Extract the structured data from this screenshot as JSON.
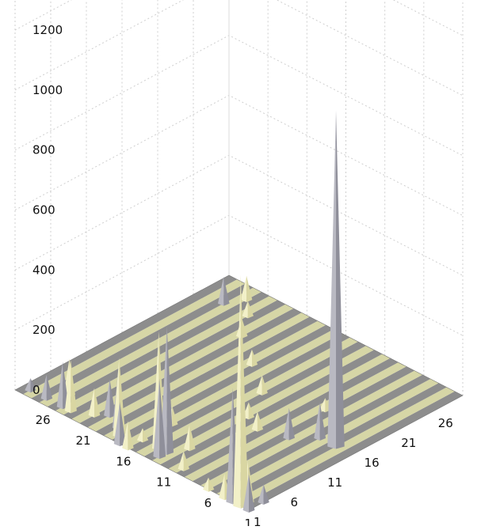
{
  "chart_data": {
    "type": "3d-bar",
    "x_ticks": [
      "1",
      "6",
      "11",
      "16",
      "21",
      "26"
    ],
    "y_ticks": [
      "1",
      "6",
      "11",
      "16",
      "21",
      "26"
    ],
    "z_ticks": [
      "0",
      "200",
      "400",
      "600",
      "800",
      "1000",
      "1200"
    ],
    "zlim": [
      0,
      1200
    ],
    "grid": true,
    "colors": {
      "row_a": "#f2f0c8",
      "row_b": "#b9b9c2",
      "floor_light": "#d6d6a6",
      "floor_dark": "#8d8d8d"
    },
    "peaks": [
      {
        "x": 1,
        "y": 1,
        "z": 120
      },
      {
        "x": 2,
        "y": 1,
        "z": 770
      },
      {
        "x": 3,
        "y": 1,
        "z": 380
      },
      {
        "x": 4,
        "y": 1,
        "z": 80
      },
      {
        "x": 2,
        "y": 2,
        "z": 140
      },
      {
        "x": 1,
        "y": 3,
        "z": 60
      },
      {
        "x": 6,
        "y": 1,
        "z": 40
      },
      {
        "x": 10,
        "y": 2,
        "z": 60
      },
      {
        "x": 13,
        "y": 3,
        "z": 420
      },
      {
        "x": 13,
        "y": 2,
        "z": 260
      },
      {
        "x": 14,
        "y": 3,
        "z": 390
      },
      {
        "x": 12,
        "y": 5,
        "z": 80
      },
      {
        "x": 16,
        "y": 1,
        "z": 90
      },
      {
        "x": 16,
        "y": 3,
        "z": 40
      },
      {
        "x": 17,
        "y": 1,
        "z": 140
      },
      {
        "x": 18,
        "y": 2,
        "z": 260
      },
      {
        "x": 19,
        "y": 3,
        "z": 200
      },
      {
        "x": 21,
        "y": 4,
        "z": 120
      },
      {
        "x": 22,
        "y": 3,
        "z": 90
      },
      {
        "x": 16,
        "y": 7,
        "z": 60
      },
      {
        "x": 24,
        "y": 2,
        "z": 170
      },
      {
        "x": 25,
        "y": 2,
        "z": 150
      },
      {
        "x": 26,
        "y": 4,
        "z": 120
      },
      {
        "x": 27,
        "y": 2,
        "z": 80
      },
      {
        "x": 29,
        "y": 2,
        "z": 40
      },
      {
        "x": 3,
        "y": 15,
        "z": 1120
      },
      {
        "x": 5,
        "y": 15,
        "z": 120
      },
      {
        "x": 7,
        "y": 13,
        "z": 100
      },
      {
        "x": 10,
        "y": 12,
        "z": 60
      },
      {
        "x": 12,
        "y": 13,
        "z": 50
      },
      {
        "x": 8,
        "y": 19,
        "z": 40
      },
      {
        "x": 14,
        "y": 17,
        "z": 60
      },
      {
        "x": 18,
        "y": 20,
        "z": 50
      },
      {
        "x": 22,
        "y": 23,
        "z": 60
      },
      {
        "x": 24,
        "y": 26,
        "z": 50
      },
      {
        "x": 26,
        "y": 28,
        "z": 80
      },
      {
        "x": 27,
        "y": 26,
        "z": 90
      }
    ]
  }
}
